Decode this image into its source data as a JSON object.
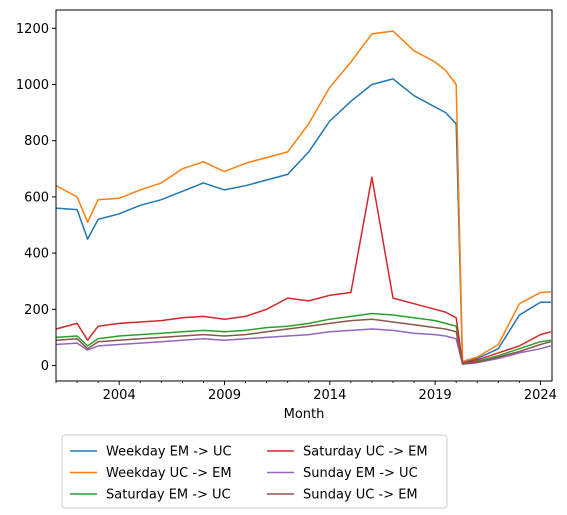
{
  "chart_data": {
    "type": "line",
    "title": "",
    "xlabel": "Month",
    "ylabel": "",
    "xlim": [
      2001.0,
      2024.55
    ],
    "ylim": [
      -55,
      1265
    ],
    "x_ticks": [
      2004,
      2009,
      2014,
      2019,
      2024
    ],
    "y_ticks": [
      0,
      200,
      400,
      600,
      800,
      1000,
      1200
    ],
    "grid": false,
    "legend_position": "below",
    "legend_columns": 2,
    "x": [
      2001.0,
      2002.0,
      2002.5,
      2003.0,
      2004.0,
      2005.0,
      2006.0,
      2007.0,
      2008.0,
      2009.0,
      2010.0,
      2011.0,
      2012.0,
      2013.0,
      2014.0,
      2015.0,
      2016.0,
      2017.0,
      2018.0,
      2019.0,
      2019.5,
      2020.0,
      2020.3,
      2021.0,
      2022.0,
      2023.0,
      2024.0,
      2024.5
    ],
    "series": [
      {
        "name": "Weekday EM -> UC",
        "color": "#1f77b4",
        "values": [
          560,
          555,
          450,
          520,
          540,
          570,
          590,
          620,
          650,
          625,
          640,
          660,
          680,
          760,
          870,
          940,
          1000,
          1020,
          960,
          920,
          900,
          860,
          10,
          25,
          60,
          180,
          225,
          225
        ]
      },
      {
        "name": "Weekday UC -> EM",
        "color": "#ff7f0e",
        "values": [
          640,
          600,
          510,
          590,
          595,
          625,
          650,
          700,
          725,
          690,
          720,
          740,
          760,
          860,
          990,
          1080,
          1180,
          1190,
          1120,
          1080,
          1050,
          1000,
          15,
          30,
          75,
          220,
          260,
          262
        ]
      },
      {
        "name": "Saturday EM -> UC",
        "color": "#2ca02c",
        "values": [
          100,
          105,
          70,
          95,
          105,
          110,
          115,
          120,
          125,
          120,
          125,
          135,
          140,
          150,
          165,
          175,
          185,
          180,
          170,
          160,
          150,
          140,
          5,
          15,
          35,
          60,
          85,
          90
        ]
      },
      {
        "name": "Saturday UC -> EM",
        "color": "#d62728",
        "values": [
          130,
          150,
          90,
          140,
          150,
          155,
          160,
          170,
          175,
          165,
          175,
          200,
          240,
          230,
          250,
          260,
          670,
          240,
          220,
          200,
          190,
          170,
          8,
          20,
          45,
          70,
          110,
          120
        ]
      },
      {
        "name": "Sunday EM -> UC",
        "color": "#9467bd",
        "values": [
          75,
          80,
          55,
          70,
          75,
          80,
          85,
          90,
          95,
          90,
          95,
          100,
          105,
          110,
          120,
          125,
          130,
          125,
          115,
          110,
          105,
          95,
          5,
          10,
          25,
          45,
          60,
          70
        ]
      },
      {
        "name": "Sunday UC -> EM",
        "color": "#8c564b",
        "values": [
          90,
          95,
          60,
          85,
          90,
          95,
          100,
          105,
          110,
          105,
          110,
          120,
          130,
          140,
          150,
          160,
          165,
          155,
          145,
          135,
          130,
          120,
          6,
          12,
          30,
          50,
          75,
          85
        ]
      }
    ]
  }
}
